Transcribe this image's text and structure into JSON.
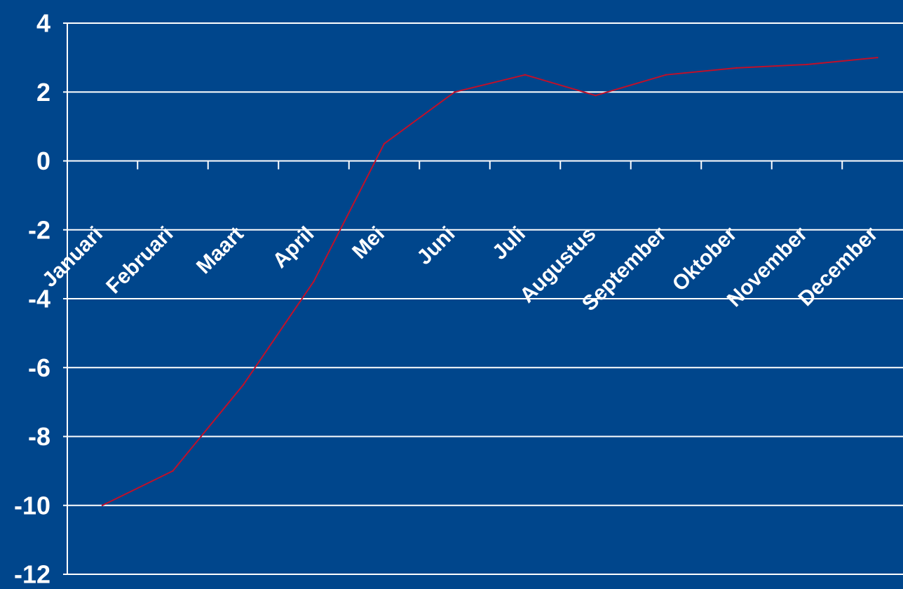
{
  "colors": {
    "background": "#00468c",
    "grid": "#ffffff",
    "axis": "#ffffff",
    "text": "#ffffff",
    "line": "#c0102a"
  },
  "chart_data": {
    "type": "line",
    "title": "",
    "xlabel": "",
    "ylabel": "",
    "categories": [
      "Januari",
      "Februari",
      "Maart",
      "April",
      "Mei",
      "Juni",
      "Juli",
      "Augustus",
      "September",
      "Oktober",
      "November",
      "December"
    ],
    "series": [
      {
        "values": [
          -10,
          -9,
          -6.5,
          -3.5,
          0.5,
          2,
          2.5,
          1.9,
          2.5,
          2.7,
          2.8,
          3
        ]
      }
    ],
    "ylim": [
      -12,
      4
    ],
    "ytick_step": 2,
    "yticks": [
      "4",
      "2",
      "0",
      "-2",
      "-4",
      "-6",
      "-8",
      "-10",
      "-12"
    ],
    "grid": true,
    "legend": "none"
  }
}
